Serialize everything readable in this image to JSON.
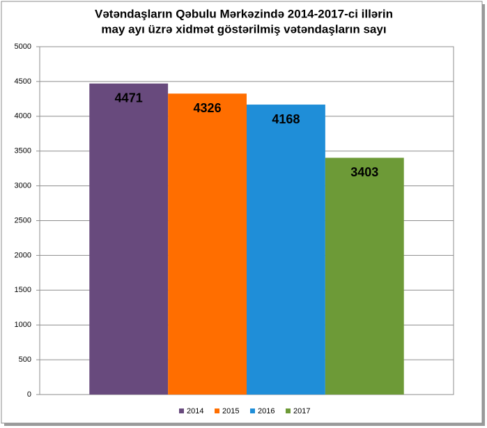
{
  "chart_data": {
    "type": "bar",
    "title": [
      "Vətəndaşların Qəbulu  Mərkəzində 2014-2017-ci  illərin",
      "may ayı üzrə  xidmət  göstərilmiş vətəndaşların sayı"
    ],
    "categories": [
      null
    ],
    "series": [
      {
        "name": "2014",
        "color": "#684a7d",
        "values": [
          4471
        ]
      },
      {
        "name": "2015",
        "color": "#ff6e00",
        "values": [
          4326
        ]
      },
      {
        "name": "2016",
        "color": "#1f8ed8",
        "values": [
          4168
        ]
      },
      {
        "name": "2017",
        "color": "#6d9a37",
        "values": [
          3403
        ]
      }
    ],
    "ylim": [
      0,
      5000
    ],
    "yticks": [
      0,
      500,
      1000,
      1500,
      2000,
      2500,
      3000,
      3500,
      4000,
      4500,
      5000
    ],
    "grid": true,
    "legend": "bottom",
    "data_labels": true
  }
}
